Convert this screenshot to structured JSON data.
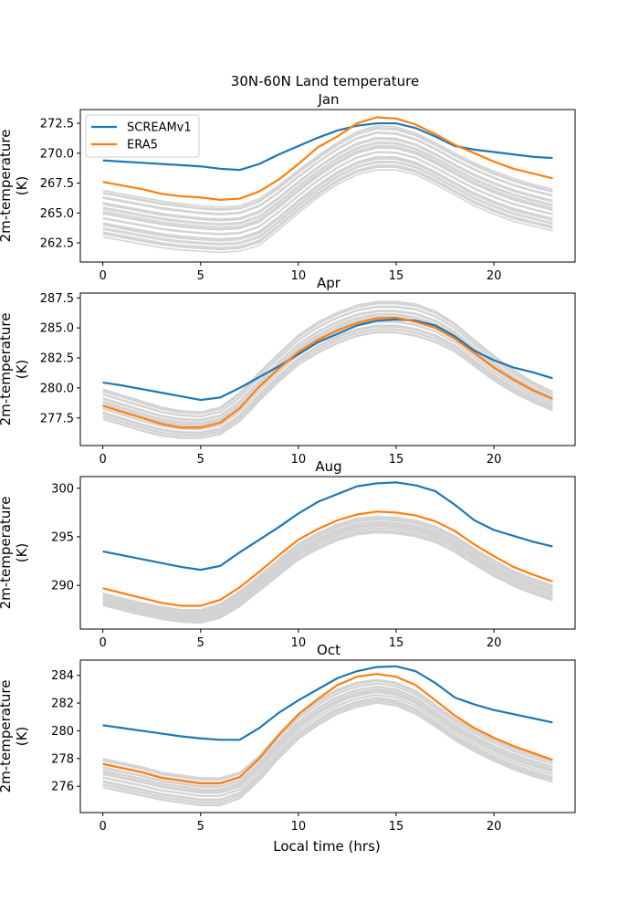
{
  "figure": {
    "suptitle": "30N-60N Land temperature",
    "xlabel": "Local time (hrs)"
  },
  "chart_data": [
    {
      "type": "line",
      "title": "Jan",
      "xlabel": "",
      "ylabel": "2m-temperature\n(K)",
      "ylabel_lines": [
        "2m-temperature",
        "(K)"
      ],
      "xlim": [
        -1.15,
        24.15
      ],
      "ylim": [
        260.9,
        273.65
      ],
      "xticks": [
        0,
        5,
        10,
        15,
        20
      ],
      "yticks": [
        262.5,
        265.0,
        267.5,
        270.0,
        272.5
      ],
      "ytick_labels": [
        "262.5",
        "265.0",
        "267.5",
        "270.0",
        "272.5"
      ],
      "grid": false,
      "legend": {
        "placement": "top-left",
        "entries": [
          "SCREAMv1",
          "ERA5"
        ]
      },
      "x": [
        0,
        1,
        2,
        3,
        4,
        5,
        6,
        7,
        8,
        9,
        10,
        11,
        12,
        13,
        14,
        15,
        16,
        17,
        18,
        19,
        20,
        21,
        22,
        23
      ],
      "series": [
        {
          "name": "SCREAMv1",
          "color": "#1f77b4",
          "values": [
            269.4,
            269.3,
            269.2,
            269.1,
            269.0,
            268.9,
            268.7,
            268.6,
            269.1,
            269.9,
            270.6,
            271.3,
            271.9,
            272.3,
            272.5,
            272.5,
            272.1,
            271.4,
            270.6,
            270.3,
            270.1,
            269.9,
            269.7,
            269.6
          ]
        },
        {
          "name": "ERA5",
          "color": "#ff7f0e",
          "values": [
            267.6,
            267.3,
            267.0,
            266.6,
            266.4,
            266.3,
            266.1,
            266.2,
            266.8,
            267.8,
            269.1,
            270.5,
            271.4,
            272.5,
            273.0,
            272.9,
            272.4,
            271.6,
            270.7,
            270.0,
            269.3,
            268.7,
            268.3,
            267.9
          ]
        }
      ],
      "ensemble": {
        "name": "ensemble members",
        "color": "#d3d3d3",
        "count": 26,
        "upper": [
          266.9,
          266.6,
          266.3,
          266.0,
          265.8,
          265.6,
          265.5,
          265.6,
          266.2,
          267.3,
          268.6,
          269.8,
          270.9,
          271.8,
          272.3,
          272.2,
          271.7,
          270.9,
          270.0,
          269.2,
          268.5,
          267.9,
          267.4,
          267.0
        ],
        "lower": [
          263.0,
          262.7,
          262.4,
          262.1,
          261.9,
          261.8,
          261.7,
          261.8,
          262.3,
          263.6,
          265.0,
          266.3,
          267.4,
          268.2,
          268.6,
          268.6,
          268.2,
          267.4,
          266.5,
          265.6,
          264.9,
          264.3,
          263.9,
          263.5
        ]
      }
    },
    {
      "type": "line",
      "title": "Apr",
      "xlabel": "",
      "ylabel_lines": [
        "2m-temperature",
        "(K)"
      ],
      "xlim": [
        -1.15,
        24.15
      ],
      "ylim": [
        275.2,
        287.9
      ],
      "xticks": [
        0,
        5,
        10,
        15,
        20
      ],
      "yticks": [
        277.5,
        280.0,
        282.5,
        285.0,
        287.5
      ],
      "ytick_labels": [
        "277.5",
        "280.0",
        "282.5",
        "285.0",
        "287.5"
      ],
      "grid": false,
      "x": [
        0,
        1,
        2,
        3,
        4,
        5,
        6,
        7,
        8,
        9,
        10,
        11,
        12,
        13,
        14,
        15,
        16,
        17,
        18,
        19,
        20,
        21,
        22,
        23
      ],
      "series": [
        {
          "name": "SCREAMv1",
          "color": "#1f77b4",
          "values": [
            280.45,
            280.2,
            279.9,
            279.6,
            279.3,
            279.0,
            279.2,
            280.0,
            280.9,
            281.8,
            282.8,
            283.8,
            284.5,
            285.2,
            285.6,
            285.7,
            285.6,
            285.2,
            284.3,
            283.1,
            282.3,
            281.7,
            281.3,
            280.8
          ]
        },
        {
          "name": "ERA5",
          "color": "#ff7f0e",
          "values": [
            278.5,
            278.0,
            277.5,
            277.0,
            276.7,
            276.7,
            277.1,
            278.3,
            280.1,
            281.6,
            283.0,
            284.0,
            284.8,
            285.4,
            285.8,
            285.85,
            285.5,
            285.0,
            284.1,
            282.9,
            281.7,
            280.7,
            279.8,
            279.1
          ]
        }
      ],
      "ensemble": {
        "name": "ensemble members",
        "color": "#d3d3d3",
        "count": 24,
        "upper": [
          279.9,
          279.4,
          278.9,
          278.4,
          278.1,
          278.0,
          278.4,
          279.6,
          281.3,
          282.9,
          284.4,
          285.5,
          286.3,
          286.9,
          287.2,
          287.2,
          287.0,
          286.4,
          285.4,
          284.0,
          282.7,
          281.5,
          280.5,
          279.7
        ],
        "lower": [
          277.4,
          276.9,
          276.4,
          276.0,
          275.8,
          275.8,
          276.1,
          277.2,
          278.9,
          280.5,
          281.9,
          282.9,
          283.7,
          284.3,
          284.6,
          284.6,
          284.3,
          283.8,
          283.0,
          281.8,
          280.6,
          279.6,
          278.8,
          278.1
        ]
      }
    },
    {
      "type": "line",
      "title": "Aug",
      "xlabel": "",
      "ylabel_lines": [
        "2m-temperature",
        "(K)"
      ],
      "xlim": [
        -1.15,
        24.15
      ],
      "ylim": [
        285.5,
        301.2
      ],
      "xticks": [
        0,
        5,
        10,
        15,
        20
      ],
      "yticks": [
        290,
        295,
        300
      ],
      "ytick_labels": [
        "290",
        "295",
        "300"
      ],
      "grid": false,
      "x": [
        0,
        1,
        2,
        3,
        4,
        5,
        6,
        7,
        8,
        9,
        10,
        11,
        12,
        13,
        14,
        15,
        16,
        17,
        18,
        19,
        20,
        21,
        22,
        23
      ],
      "series": [
        {
          "name": "SCREAMv1",
          "color": "#1f77b4",
          "values": [
            293.5,
            293.1,
            292.7,
            292.3,
            291.9,
            291.6,
            292.0,
            293.4,
            294.7,
            296.0,
            297.4,
            298.6,
            299.4,
            300.2,
            300.5,
            300.6,
            300.3,
            299.7,
            298.3,
            296.7,
            295.7,
            295.1,
            294.5,
            294.0
          ]
        },
        {
          "name": "ERA5",
          "color": "#ff7f0e",
          "values": [
            289.7,
            289.2,
            288.7,
            288.2,
            287.9,
            287.9,
            288.5,
            289.8,
            291.4,
            293.1,
            294.7,
            295.8,
            296.7,
            297.3,
            297.6,
            297.5,
            297.2,
            296.6,
            295.6,
            294.2,
            293.0,
            291.9,
            291.1,
            290.4
          ]
        }
      ],
      "ensemble": {
        "name": "ensemble members",
        "color": "#d3d3d3",
        "count": 22,
        "upper": [
          289.2,
          288.7,
          288.2,
          287.8,
          287.5,
          287.5,
          288.1,
          289.4,
          291.0,
          292.7,
          294.3,
          295.4,
          296.3,
          296.9,
          297.1,
          297.0,
          296.7,
          296.1,
          295.1,
          293.8,
          292.6,
          291.5,
          290.7,
          290.0
        ],
        "lower": [
          287.9,
          287.4,
          286.9,
          286.5,
          286.2,
          286.1,
          286.6,
          287.8,
          289.4,
          291.0,
          292.6,
          293.7,
          294.6,
          295.2,
          295.4,
          295.3,
          295.0,
          294.4,
          293.4,
          292.1,
          290.9,
          289.9,
          289.1,
          288.4
        ]
      }
    },
    {
      "type": "line",
      "title": "Oct",
      "xlabel": "Local time (hrs)",
      "ylabel_lines": [
        "2m-temperature",
        "(K)"
      ],
      "xlim": [
        -1.15,
        24.15
      ],
      "ylim": [
        274.1,
        285.1
      ],
      "xticks": [
        0,
        5,
        10,
        15,
        20
      ],
      "yticks": [
        276,
        278,
        280,
        282,
        284
      ],
      "ytick_labels": [
        "276",
        "278",
        "280",
        "282",
        "284"
      ],
      "grid": false,
      "x": [
        0,
        1,
        2,
        3,
        4,
        5,
        6,
        7,
        8,
        9,
        10,
        11,
        12,
        13,
        14,
        15,
        16,
        17,
        18,
        19,
        20,
        21,
        22,
        23
      ],
      "series": [
        {
          "name": "SCREAMv1",
          "color": "#1f77b4",
          "values": [
            280.4,
            280.2,
            280.0,
            279.8,
            279.6,
            279.45,
            279.35,
            279.35,
            280.2,
            281.3,
            282.2,
            283.0,
            283.8,
            284.3,
            284.6,
            284.65,
            284.3,
            283.45,
            282.4,
            281.9,
            281.5,
            281.2,
            280.9,
            280.6
          ]
        },
        {
          "name": "ERA5",
          "color": "#ff7f0e",
          "values": [
            277.6,
            277.3,
            277.0,
            276.6,
            276.4,
            276.2,
            276.2,
            276.65,
            278.0,
            279.7,
            281.2,
            282.3,
            283.3,
            283.9,
            284.1,
            283.9,
            283.3,
            282.2,
            281.1,
            280.2,
            279.5,
            278.9,
            278.4,
            277.9
          ]
        }
      ],
      "ensemble": {
        "name": "ensemble members",
        "color": "#d3d3d3",
        "count": 24,
        "upper": [
          278.0,
          277.7,
          277.4,
          277.0,
          276.8,
          276.6,
          276.6,
          277.0,
          278.2,
          279.8,
          281.2,
          282.2,
          283.0,
          283.5,
          283.7,
          283.5,
          282.9,
          281.9,
          280.9,
          280.1,
          279.4,
          278.8,
          278.3,
          277.9
        ],
        "lower": [
          275.9,
          275.6,
          275.3,
          275.0,
          274.8,
          274.6,
          274.6,
          275.1,
          276.4,
          278.0,
          279.4,
          280.4,
          281.2,
          281.7,
          282.0,
          281.8,
          281.2,
          280.3,
          279.3,
          278.5,
          277.8,
          277.2,
          276.7,
          276.3
        ]
      }
    }
  ]
}
